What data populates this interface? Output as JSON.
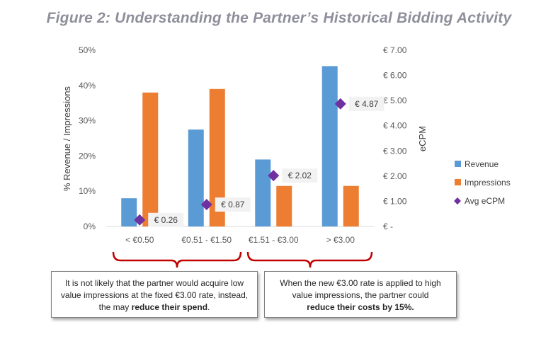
{
  "figure": {
    "title": "Figure 2:  Understanding the Partner’s Historical Bidding Activity"
  },
  "chart_data": {
    "type": "bar",
    "categories": [
      "< €0.50",
      "€0.51 - €1.50",
      "€1.51 - €3.00",
      "> €3.00"
    ],
    "series": [
      {
        "name": "Revenue",
        "values": [
          8,
          27.5,
          19,
          45.5
        ],
        "color": "#5b9bd5",
        "axis": "left",
        "kind": "bar"
      },
      {
        "name": "Impressions",
        "values": [
          38,
          39,
          11.5,
          11.5
        ],
        "color": "#ed7d31",
        "axis": "left",
        "kind": "bar"
      },
      {
        "name": "Avg eCPM",
        "values": [
          0.26,
          0.87,
          2.02,
          4.87
        ],
        "color": "#7030a0",
        "axis": "right",
        "kind": "marker",
        "labels": [
          "€ 0.26",
          "€ 0.87",
          "€ 2.02",
          "€ 4.87"
        ]
      }
    ],
    "ylabel_left": "% Revenue / Impressions",
    "ylabel_right": "eCPM",
    "ylim_left": [
      0,
      50
    ],
    "ylim_right": [
      0,
      7
    ],
    "yticks_left": [
      "0%",
      "10%",
      "20%",
      "30%",
      "40%",
      "50%"
    ],
    "yticks_right": [
      "€ -",
      "€ 1.00",
      "€ 2.00",
      "€ 3.00",
      "€ 4.00",
      "€ 5.00",
      "€ 6.00",
      "€ 7.00"
    ],
    "grid": false,
    "legend_position": "right"
  },
  "annotations": {
    "bracket_color": "#c00000",
    "left_note": {
      "pre": "It is not likely that the partner would acquire low value impressions at the fixed €3.00 rate, instead, the may ",
      "bold": "reduce their spend",
      "post": "."
    },
    "right_note": {
      "pre": "When the new €3.00 rate is applied to high value impressions, the partner could ",
      "bold": "reduce their costs by 15%."
    }
  }
}
